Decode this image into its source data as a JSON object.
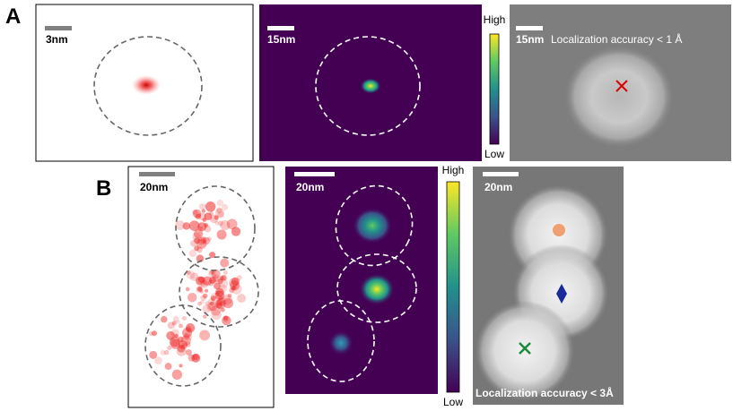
{
  "panel_a": {
    "label": "A",
    "localizations": {
      "scale": "3nm"
    },
    "heatmap": {
      "scale": "15nm",
      "colorbar_high": "High",
      "colorbar_low": "Low"
    },
    "image": {
      "scale": "15nm",
      "accuracy": "Localization accuracy < 1 Å"
    }
  },
  "panel_b": {
    "label": "B",
    "localizations": {
      "scale": "20nm"
    },
    "heatmap": {
      "scale": "20nm",
      "colorbar_high": "High",
      "colorbar_low": "Low"
    },
    "image": {
      "scale": "20nm",
      "accuracy": "Localization accuracy < 3Å"
    }
  }
}
